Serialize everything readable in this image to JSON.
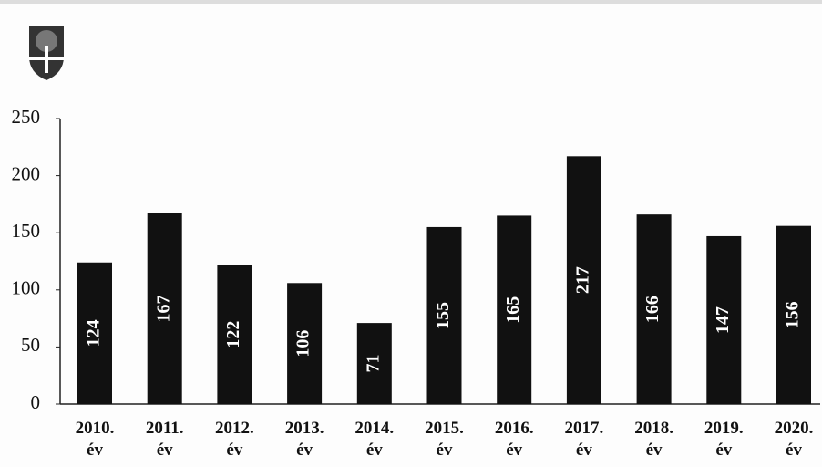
{
  "chart_data": {
    "type": "bar",
    "categories": [
      "2010. év",
      "2011. év",
      "2012. év",
      "2013. év",
      "2014. év",
      "2015. év",
      "2016. év",
      "2017. év",
      "2018. év",
      "2019. év",
      "2020. év"
    ],
    "values": [
      124,
      167,
      122,
      106,
      71,
      155,
      165,
      217,
      166,
      147,
      156
    ],
    "color": "#111111",
    "ylim": [
      0,
      250
    ],
    "yticks": [
      0,
      50,
      100,
      150,
      200,
      250
    ],
    "grid": false
  }
}
